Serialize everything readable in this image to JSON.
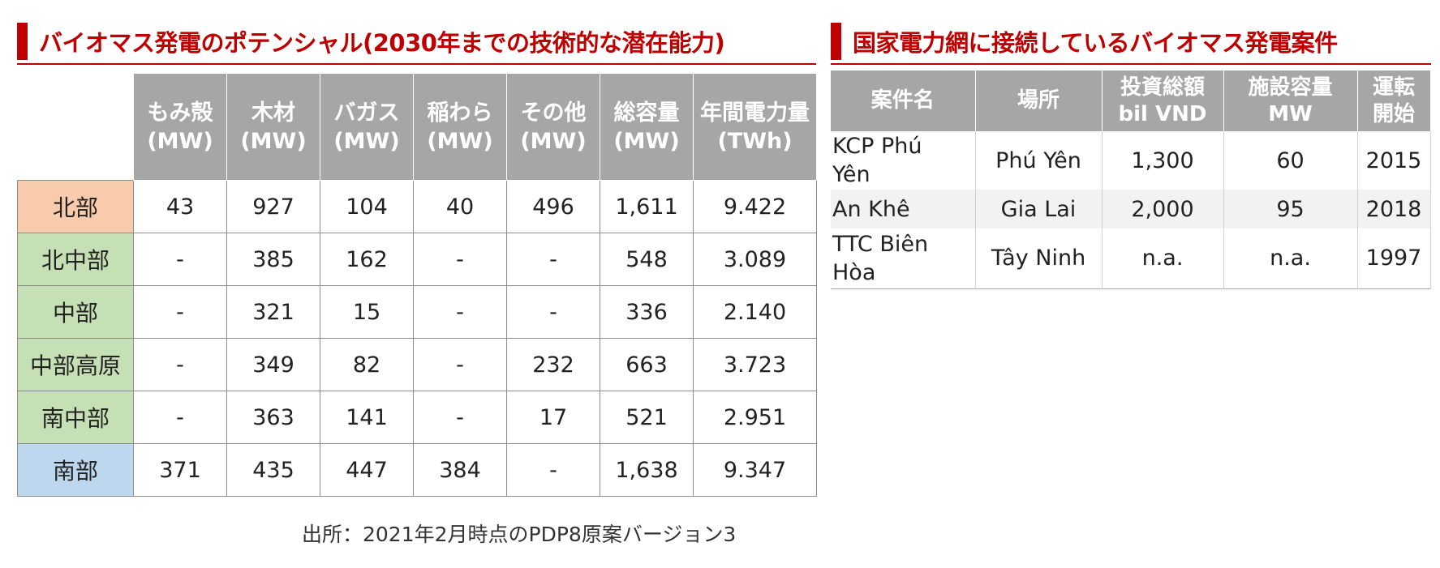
{
  "left_panel": {
    "title": "バイオマス発電のポテンシャル(2030年までの技術的な潜在能力)",
    "columns": [
      {
        "l1": "もみ殻",
        "l2": "(MW)"
      },
      {
        "l1": "木材",
        "l2": "(MW)"
      },
      {
        "l1": "バガス",
        "l2": "(MW)"
      },
      {
        "l1": "稲わら",
        "l2": "(MW)"
      },
      {
        "l1": "その他",
        "l2": "(MW)"
      },
      {
        "l1": "総容量",
        "l2": "(MW)"
      },
      {
        "l1": "年間電力量",
        "l2": "(TWh)"
      }
    ],
    "rows": [
      {
        "region": "北部",
        "color": "#f8cbad",
        "values": [
          "43",
          "927",
          "104",
          "40",
          "496",
          "1,611",
          "9.422"
        ]
      },
      {
        "region": "北中部",
        "color": "#c5e0b4",
        "values": [
          "-",
          "385",
          "162",
          "-",
          "-",
          "548",
          "3.089"
        ]
      },
      {
        "region": "中部",
        "color": "#c5e0b4",
        "values": [
          "-",
          "321",
          "15",
          "-",
          "-",
          "336",
          "2.140"
        ]
      },
      {
        "region": "中部高原",
        "color": "#c5e0b4",
        "values": [
          "-",
          "349",
          "82",
          "-",
          "232",
          "663",
          "3.723"
        ]
      },
      {
        "region": "南中部",
        "color": "#c5e0b4",
        "values": [
          "-",
          "363",
          "141",
          "-",
          "17",
          "521",
          "2.951"
        ]
      },
      {
        "region": "南部",
        "color": "#bdd7ee",
        "values": [
          "371",
          "435",
          "447",
          "384",
          "-",
          "1,638",
          "9.347"
        ]
      }
    ],
    "source": "出所：2021年2月時点のPDP8原案バージョン3"
  },
  "right_panel": {
    "title": "国家電力網に接続しているバイオマス発電案件",
    "columns": [
      {
        "l1": "案件名",
        "l2": ""
      },
      {
        "l1": "場所",
        "l2": ""
      },
      {
        "l1": "投資総額",
        "l2": "bil VND"
      },
      {
        "l1": "施設容量",
        "l2": "MW"
      },
      {
        "l1": "運転",
        "l2": "開始"
      }
    ],
    "rows": [
      {
        "name_l1": "KCP Phú",
        "name_l2": "Yên",
        "location": "Phú Yên",
        "investment": "1,300",
        "capacity": "60",
        "start": "2015"
      },
      {
        "name_l1": "An Khê",
        "name_l2": "",
        "location": "Gia Lai",
        "investment": "2,000",
        "capacity": "95",
        "start": "2018"
      },
      {
        "name_l1": "TTC Biên",
        "name_l2": "Hòa",
        "location": "Tây Ninh",
        "investment": "n.a.",
        "capacity": "n.a.",
        "start": "1997"
      }
    ]
  },
  "colors": {
    "accent": "#c00000",
    "header_gray": "#a6a6a6",
    "north": "#f8cbad",
    "central": "#c5e0b4",
    "south": "#bdd7ee"
  }
}
